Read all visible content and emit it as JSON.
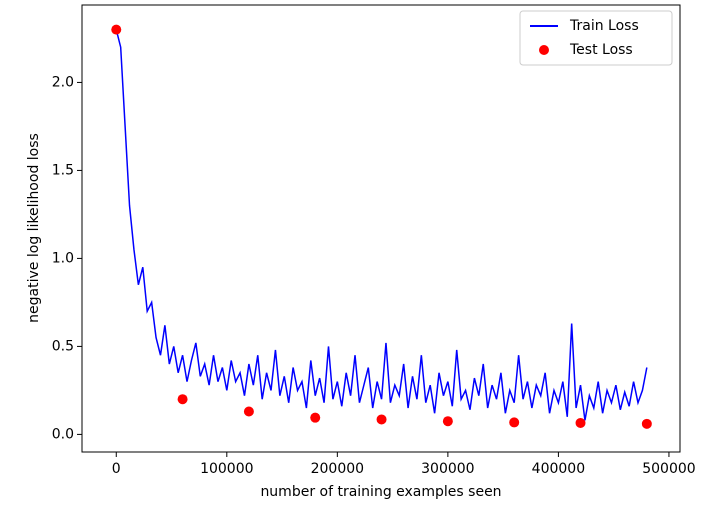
{
  "chart_data": {
    "type": "line-scatter",
    "xlabel": "number of training examples seen",
    "ylabel": "negative log likelihood loss",
    "xlim": [
      -31000,
      510000
    ],
    "ylim": [
      -0.1,
      2.44
    ],
    "xticks": [
      0,
      100000,
      200000,
      300000,
      400000,
      500000
    ],
    "yticks": [
      {
        "value": 0,
        "label": "0.0"
      },
      0.5,
      {
        "value": 1,
        "label": "1.0"
      },
      1.5,
      {
        "value": 2,
        "label": "2.0"
      }
    ],
    "legend": "upper right",
    "series": [
      {
        "name": "Train Loss",
        "kind": "line",
        "color": "#0000ff",
        "x": [
          0,
          4000,
          8000,
          12000,
          16000,
          20000,
          24000,
          28000,
          32000,
          36000,
          40000,
          44000,
          48000,
          52000,
          56000,
          60000,
          64000,
          68000,
          72000,
          76000,
          80000,
          84000,
          88000,
          92000,
          96000,
          100000,
          104000,
          108000,
          112000,
          116000,
          120000,
          124000,
          128000,
          132000,
          136000,
          140000,
          144000,
          148000,
          152000,
          156000,
          160000,
          164000,
          168000,
          172000,
          176000,
          180000,
          184000,
          188000,
          192000,
          196000,
          200000,
          204000,
          208000,
          212000,
          216000,
          220000,
          224000,
          228000,
          232000,
          236000,
          240000,
          244000,
          248000,
          252000,
          256000,
          260000,
          264000,
          268000,
          272000,
          276000,
          280000,
          284000,
          288000,
          292000,
          296000,
          300000,
          304000,
          308000,
          312000,
          316000,
          320000,
          324000,
          328000,
          332000,
          336000,
          340000,
          344000,
          348000,
          352000,
          356000,
          360000,
          364000,
          368000,
          372000,
          376000,
          380000,
          384000,
          388000,
          392000,
          396000,
          400000,
          404000,
          408000,
          412000,
          416000,
          420000,
          424000,
          428000,
          432000,
          436000,
          440000,
          444000,
          448000,
          452000,
          456000,
          460000,
          464000,
          468000,
          472000,
          476000,
          480000
        ],
        "values": [
          2.3,
          2.2,
          1.75,
          1.3,
          1.05,
          0.85,
          0.95,
          0.7,
          0.75,
          0.55,
          0.45,
          0.62,
          0.4,
          0.5,
          0.35,
          0.45,
          0.3,
          0.42,
          0.52,
          0.33,
          0.4,
          0.28,
          0.45,
          0.3,
          0.38,
          0.25,
          0.42,
          0.3,
          0.35,
          0.22,
          0.4,
          0.28,
          0.45,
          0.2,
          0.35,
          0.25,
          0.48,
          0.22,
          0.33,
          0.18,
          0.38,
          0.25,
          0.3,
          0.15,
          0.42,
          0.22,
          0.32,
          0.18,
          0.5,
          0.2,
          0.3,
          0.16,
          0.35,
          0.22,
          0.45,
          0.18,
          0.28,
          0.38,
          0.15,
          0.3,
          0.2,
          0.52,
          0.18,
          0.28,
          0.22,
          0.4,
          0.15,
          0.33,
          0.2,
          0.45,
          0.18,
          0.28,
          0.12,
          0.35,
          0.22,
          0.3,
          0.16,
          0.48,
          0.2,
          0.25,
          0.14,
          0.32,
          0.22,
          0.4,
          0.15,
          0.28,
          0.2,
          0.35,
          0.12,
          0.25,
          0.18,
          0.45,
          0.2,
          0.3,
          0.15,
          0.28,
          0.22,
          0.35,
          0.12,
          0.25,
          0.18,
          0.3,
          0.1,
          0.63,
          0.15,
          0.28,
          0.08,
          0.22,
          0.15,
          0.3,
          0.12,
          0.25,
          0.18,
          0.28,
          0.14,
          0.24,
          0.16,
          0.3,
          0.18,
          0.25,
          0.38
        ]
      },
      {
        "name": "Test Loss",
        "kind": "scatter",
        "color": "#ff0000",
        "x": [
          0,
          60000,
          120000,
          180000,
          240000,
          300000,
          360000,
          420000,
          480000
        ],
        "values": [
          2.3,
          0.2,
          0.13,
          0.095,
          0.085,
          0.075,
          0.068,
          0.065,
          0.06
        ]
      }
    ]
  }
}
